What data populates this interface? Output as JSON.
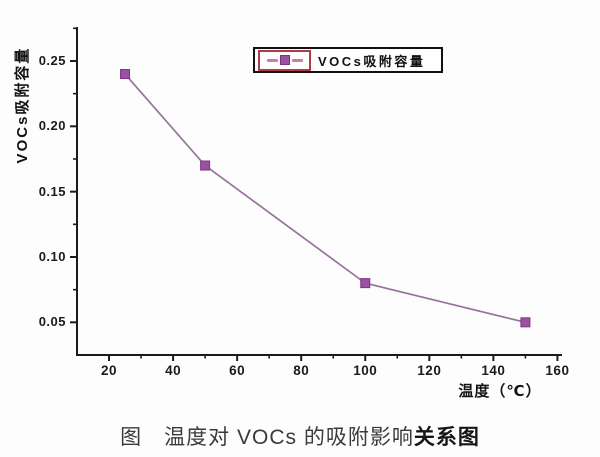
{
  "figure": {
    "caption_prefix": "图　温度对 VOCs 的吸附影响",
    "caption_bold": "关系图"
  },
  "chart_data": {
    "type": "line",
    "title": "",
    "xlabel": "温度（℃）",
    "ylabel": "VOCs吸附容量",
    "legend": {
      "position": "top-center",
      "entries": [
        "VOCs吸附容量"
      ],
      "sample_style": "dashed-line-with-square-marker",
      "highlight_box": true
    },
    "series": [
      {
        "name": "VOCs吸附容量",
        "x": [
          25,
          50,
          100,
          150
        ],
        "y": [
          0.24,
          0.17,
          0.08,
          0.05
        ],
        "marker": "square",
        "line_style": "solid"
      }
    ],
    "xlim": [
      10,
      160.8
    ],
    "ylim": [
      0.025,
      0.276
    ],
    "xticks": {
      "major": [
        20,
        40,
        60,
        80,
        100,
        120,
        140,
        160
      ],
      "major_labels": [
        "20",
        "40",
        "60",
        "80",
        "100",
        "120",
        "140",
        "160"
      ],
      "minor": [
        30,
        50,
        70,
        90,
        110,
        130,
        150
      ]
    },
    "yticks": {
      "major": [
        0.05,
        0.1,
        0.15,
        0.2,
        0.25
      ],
      "major_labels": [
        "0.05",
        "0.10",
        "0.15",
        "0.20",
        "0.25"
      ],
      "minor": [
        0.075,
        0.125,
        0.175,
        0.225,
        0.275
      ]
    },
    "grid": false,
    "colors": {
      "axis": "#1b1b1b",
      "line": "#96739a",
      "marker_fill": "#9c51a1",
      "marker_border": "#7d3488",
      "legend_dash": "#c97f9e",
      "legend_border": "#111111",
      "legend_highlight": "#b23a48",
      "text": "#1b1b1b",
      "background": "#fdfdfd"
    }
  }
}
